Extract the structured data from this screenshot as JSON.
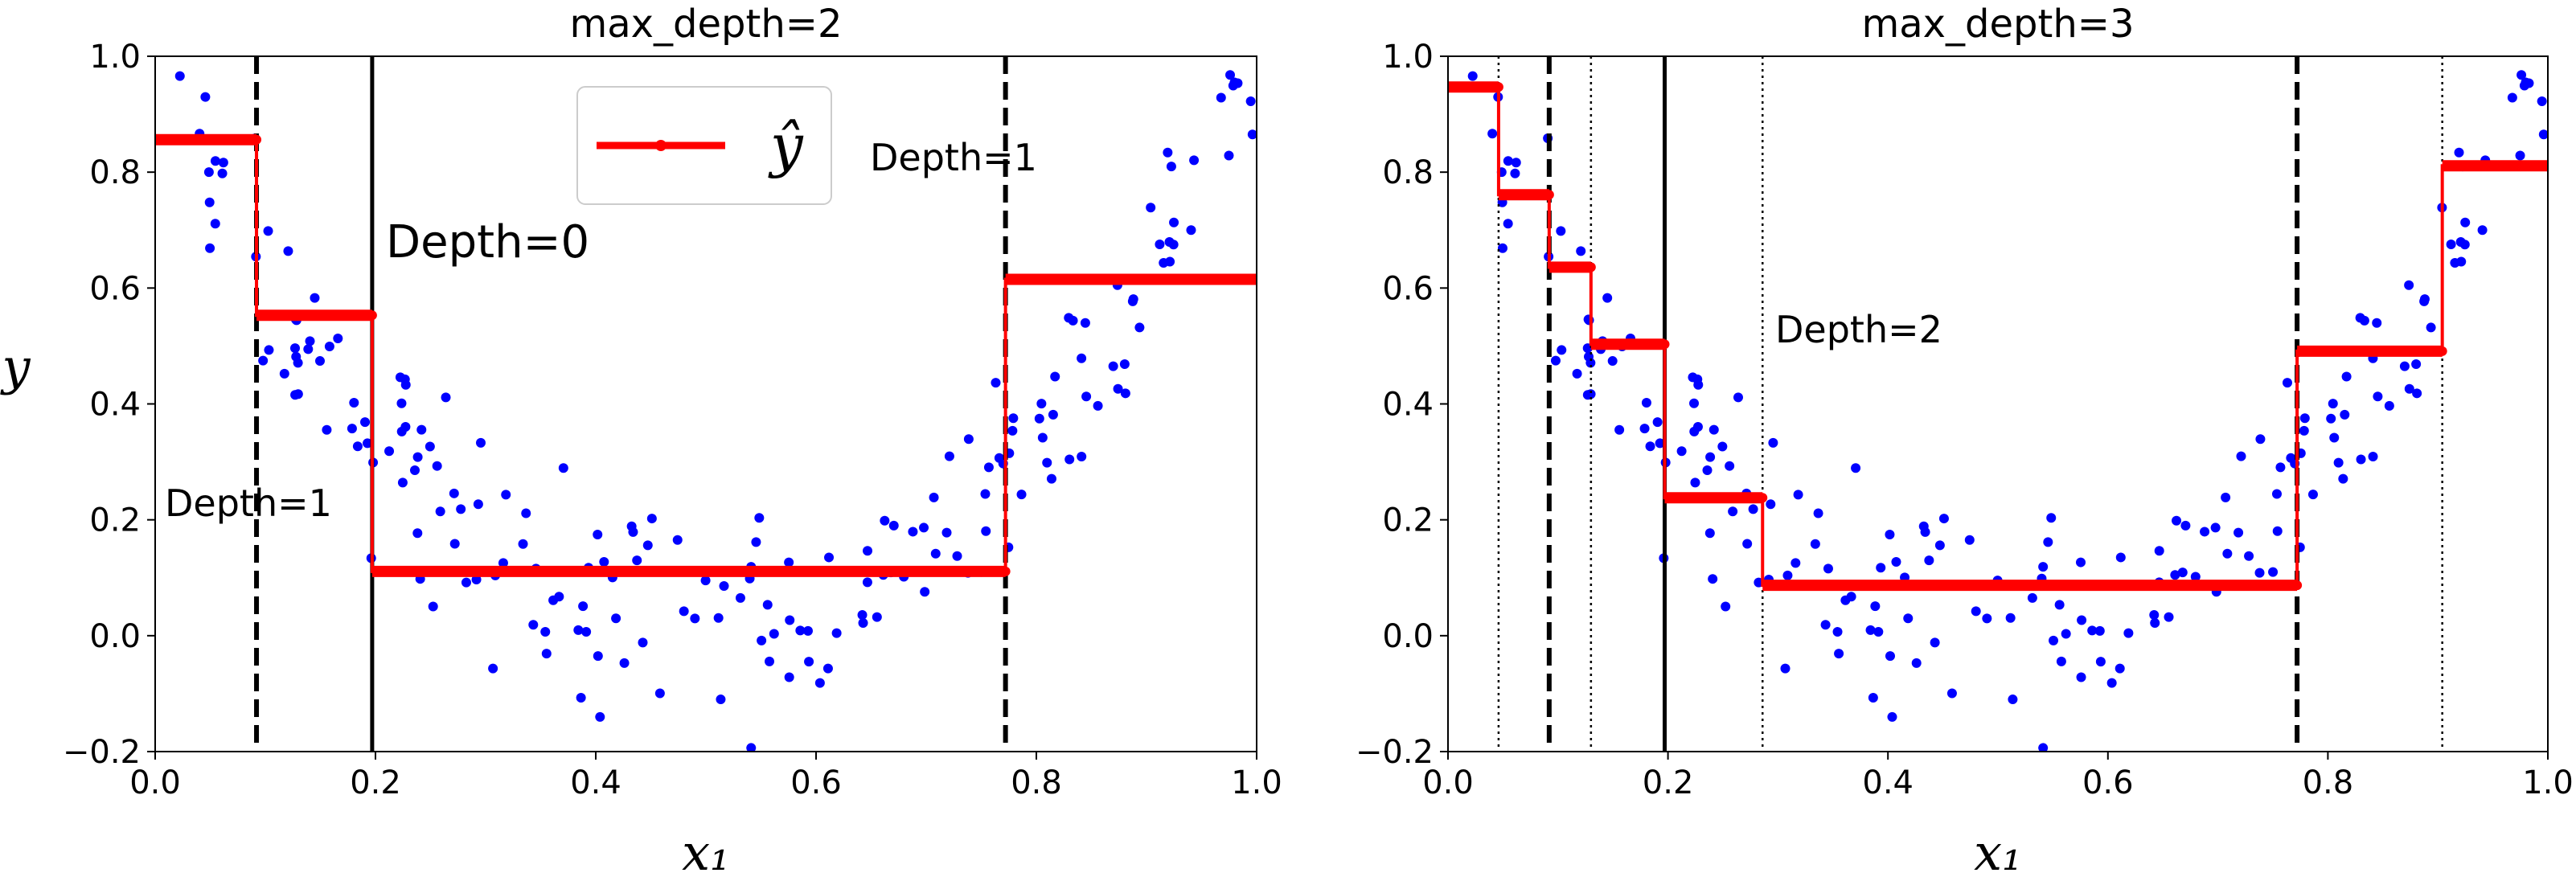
{
  "chart_data": [
    {
      "type": "scatter",
      "title": "max_depth=2",
      "xlabel": "x₁",
      "ylabel": "y",
      "xlim": [
        0.0,
        1.0
      ],
      "ylim": [
        -0.2,
        1.0
      ],
      "xticks": [
        "0.0",
        "0.2",
        "0.4",
        "0.6",
        "0.8",
        "1.0"
      ],
      "yticks": [
        "−0.2",
        "0.0",
        "0.2",
        "0.4",
        "0.6",
        "0.8",
        "1.0"
      ],
      "series": [
        {
          "name": "ŷ",
          "kind": "step-prediction",
          "color": "#ff0000",
          "segments": [
            [
              0.0,
              0.092,
              0.856
            ],
            [
              0.092,
              0.197,
              0.553
            ],
            [
              0.197,
              0.772,
              0.111
            ],
            [
              0.772,
              1.0,
              0.615
            ]
          ]
        }
      ],
      "split_lines": [
        {
          "x": 0.197,
          "style": "solid",
          "depth": 0
        },
        {
          "x": 0.092,
          "style": "dashed",
          "depth": 1
        },
        {
          "x": 0.772,
          "style": "dashed",
          "depth": 1
        }
      ],
      "annotations": [
        {
          "text": "Depth=0",
          "x": 0.21,
          "y": 0.65,
          "size": "big"
        },
        {
          "text": "Depth=1",
          "x": 0.01,
          "y": 0.2,
          "size": "normal"
        },
        {
          "text": "Depth=1",
          "x": 0.65,
          "y": 0.8,
          "size": "normal"
        }
      ],
      "legend": {
        "label": "ŷ",
        "location": "top-center"
      }
    },
    {
      "type": "scatter",
      "title": "max_depth=3",
      "xlabel": "x₁",
      "ylabel": "",
      "xlim": [
        0.0,
        1.0
      ],
      "ylim": [
        -0.2,
        1.0
      ],
      "xticks": [
        "0.0",
        "0.2",
        "0.4",
        "0.6",
        "0.8",
        "1.0"
      ],
      "yticks": [
        "−0.2",
        "0.0",
        "0.2",
        "0.4",
        "0.6",
        "0.8",
        "1.0"
      ],
      "series": [
        {
          "name": "ŷ",
          "kind": "step-prediction",
          "color": "#ff0000",
          "segments": [
            [
              0.0,
              0.046,
              0.947
            ],
            [
              0.046,
              0.092,
              0.761
            ],
            [
              0.092,
              0.13,
              0.636
            ],
            [
              0.13,
              0.197,
              0.503
            ],
            [
              0.197,
              0.286,
              0.238
            ],
            [
              0.286,
              0.772,
              0.087
            ],
            [
              0.772,
              0.904,
              0.491
            ],
            [
              0.904,
              1.0,
              0.811
            ]
          ]
        }
      ],
      "split_lines": [
        {
          "x": 0.197,
          "style": "solid",
          "depth": 0
        },
        {
          "x": 0.092,
          "style": "dashed",
          "depth": 1
        },
        {
          "x": 0.772,
          "style": "dashed",
          "depth": 1
        },
        {
          "x": 0.046,
          "style": "dotted",
          "depth": 2
        },
        {
          "x": 0.13,
          "style": "dotted",
          "depth": 2
        },
        {
          "x": 0.286,
          "style": "dotted",
          "depth": 2
        },
        {
          "x": 0.904,
          "style": "dotted",
          "depth": 2
        }
      ],
      "annotations": [
        {
          "text": "Depth=2",
          "x": 0.3,
          "y": 0.5,
          "size": "normal"
        }
      ],
      "legend": null
    }
  ],
  "colors": {
    "points": "#0000ff",
    "prediction": "#ff0000",
    "splits": "#000000"
  }
}
